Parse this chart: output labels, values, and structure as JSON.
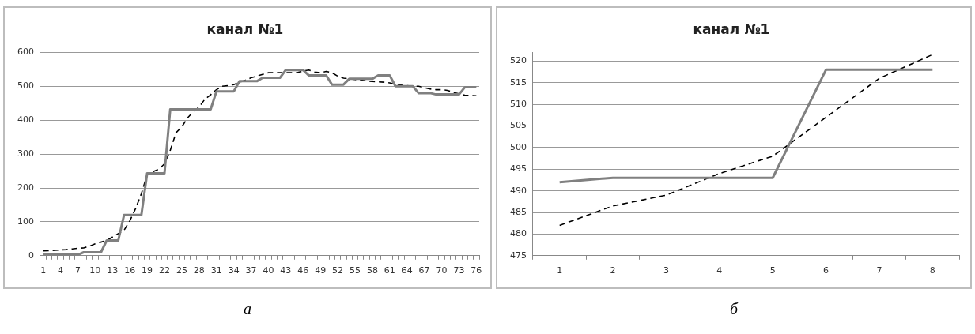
{
  "chart_data": [
    {
      "type": "line",
      "title": "канал №1",
      "marker": "none",
      "grid": "y",
      "legend": false,
      "categories": [
        "1",
        null,
        null,
        "4",
        null,
        null,
        "7",
        null,
        null,
        "10",
        null,
        null,
        "13",
        null,
        null,
        "16",
        null,
        null,
        "19",
        null,
        null,
        "22",
        null,
        null,
        "25",
        null,
        null,
        "28",
        null,
        null,
        "31",
        null,
        null,
        "34",
        null,
        null,
        "37",
        null,
        null,
        "40",
        null,
        null,
        "43",
        null,
        null,
        "46",
        null,
        null,
        "49",
        null,
        null,
        "52",
        null,
        null,
        "55",
        null,
        null,
        "58",
        null,
        null,
        "61",
        null,
        null,
        "64",
        null,
        null,
        "67",
        null,
        null,
        "70",
        null,
        null,
        "73",
        null,
        null,
        "76"
      ],
      "series": [
        {
          "color": "#808080",
          "line_style": "solid",
          "values": [
            3,
            3,
            3,
            3,
            3,
            3,
            3,
            10,
            10,
            10,
            10,
            45,
            45,
            45,
            120,
            120,
            120,
            120,
            243,
            243,
            243,
            243,
            432,
            432,
            432,
            432,
            432,
            432,
            432,
            432,
            485,
            485,
            485,
            485,
            515,
            515,
            515,
            515,
            525,
            525,
            525,
            525,
            548,
            548,
            548,
            548,
            532,
            532,
            532,
            532,
            505,
            505,
            505,
            522,
            522,
            522,
            522,
            522,
            532,
            532,
            532,
            500,
            500,
            500,
            500,
            480,
            480,
            480,
            476,
            476,
            476,
            476,
            476,
            497,
            497,
            497
          ]
        },
        {
          "color": "#000000",
          "line_style": "dashed",
          "values": [
            14,
            15,
            16,
            17,
            18,
            20,
            22,
            23,
            28,
            35,
            40,
            45,
            55,
            65,
            75,
            103,
            139,
            183,
            239,
            248,
            255,
            271,
            311,
            363,
            380,
            407,
            425,
            439,
            462,
            475,
            490,
            500,
            502,
            505,
            512,
            518,
            525,
            530,
            535,
            540,
            540,
            540,
            540,
            540,
            540,
            545,
            548,
            542,
            540,
            544,
            540,
            530,
            524,
            522,
            520,
            518,
            516,
            514,
            513,
            512,
            510,
            506,
            504,
            502,
            500,
            500,
            496,
            492,
            490,
            490,
            488,
            482,
            478,
            474,
            473,
            472
          ]
        }
      ],
      "ylim": [
        0,
        600
      ],
      "yticks": [
        0,
        100,
        200,
        300,
        400,
        500,
        600
      ],
      "annotations": [
        "а"
      ]
    },
    {
      "type": "line",
      "title": "канал №1",
      "marker": "none",
      "grid": "y",
      "legend": false,
      "categories": [
        "1",
        "2",
        "3",
        "4",
        "5",
        "6",
        "7",
        "8"
      ],
      "series": [
        {
          "color": "#808080",
          "line_style": "solid",
          "values": [
            492,
            493,
            493,
            493,
            493,
            518,
            518,
            518
          ]
        },
        {
          "color": "#000000",
          "line_style": "dashed",
          "values": [
            482,
            486.5,
            489,
            494,
            498,
            507,
            516,
            521.5
          ]
        }
      ],
      "ylim": [
        475,
        522
      ],
      "yticks": [
        475,
        480,
        485,
        490,
        495,
        500,
        505,
        510,
        515,
        520
      ],
      "annotations": [
        "б"
      ]
    }
  ]
}
